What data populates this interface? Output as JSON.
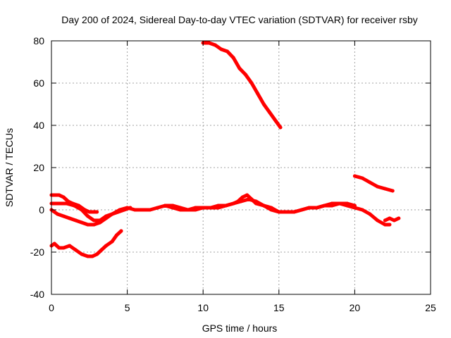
{
  "chart_data": {
    "type": "line",
    "title": "Day 200 of 2024, Sidereal Day-to-day VTEC variation (SDTVAR) for receiver rsby",
    "xlabel": "GPS time / hours",
    "ylabel": "SDTVAR / TECUs",
    "xlim": [
      0,
      25
    ],
    "ylim": [
      -40,
      80
    ],
    "xticks": [
      0,
      5,
      10,
      15,
      20,
      25
    ],
    "yticks": [
      -40,
      -20,
      0,
      20,
      40,
      60,
      80
    ],
    "grid": true,
    "legend": "none",
    "series_color": "#ff0000",
    "series": [
      {
        "name": "s1",
        "x": [
          0.0,
          0.2,
          0.5,
          0.8,
          1.2,
          1.6,
          2.0,
          2.4,
          2.7,
          3.0,
          3.3,
          3.6,
          4.0,
          4.3,
          4.6
        ],
        "y": [
          -17,
          -16,
          -18,
          -18,
          -17,
          -19,
          -21,
          -22,
          -22,
          -21,
          -19,
          -17,
          -15,
          -12,
          -10
        ]
      },
      {
        "name": "s2",
        "x": [
          0.0,
          0.2,
          0.5,
          0.8,
          1.1,
          1.4,
          1.8,
          2.2,
          2.5,
          2.8,
          3.0
        ],
        "y": [
          7,
          7,
          7,
          6,
          4,
          3,
          2,
          0,
          -1,
          -1,
          -1
        ]
      },
      {
        "name": "s3",
        "x": [
          0.0,
          0.3,
          0.6,
          1.0,
          1.5,
          2.0,
          2.4,
          2.8,
          3.2,
          3.6,
          4.0,
          4.4,
          4.8,
          5.2
        ],
        "y": [
          3,
          3,
          3,
          3,
          2,
          0,
          -3,
          -5,
          -5,
          -3,
          -2,
          -1,
          0,
          1
        ]
      },
      {
        "name": "s4",
        "x": [
          0.0,
          0.4,
          0.8,
          1.2,
          1.6,
          2.0,
          2.4,
          2.8,
          3.2,
          3.6,
          4.0,
          4.5,
          5.0,
          5.5,
          6.0,
          6.5,
          7.0,
          7.5,
          8.0,
          8.5,
          9.0,
          9.5,
          10.0,
          10.5,
          11.0,
          11.5,
          12.0,
          12.5,
          13.0,
          13.5,
          14.0,
          14.5,
          15.0,
          15.5,
          16.0,
          16.5,
          17.0,
          17.5,
          18.0,
          18.5,
          19.0,
          19.5,
          20.0
        ],
        "y": [
          0,
          -2,
          -3,
          -4,
          -5,
          -6,
          -7,
          -7,
          -6,
          -4,
          -2,
          0,
          1,
          0,
          0,
          0,
          1,
          2,
          1,
          0,
          0,
          1,
          1,
          1,
          1,
          2,
          3,
          4,
          5,
          4,
          2,
          1,
          -1,
          -1,
          -1,
          0,
          1,
          1,
          2,
          2,
          3,
          3,
          2
        ]
      },
      {
        "name": "s5",
        "x": [
          7.5,
          8.0,
          8.5,
          9.0,
          9.5,
          10.0,
          10.5,
          11.0,
          11.5,
          12.0,
          12.3,
          12.6,
          12.9,
          13.2,
          13.5,
          14.0
        ],
        "y": [
          2,
          2,
          1,
          0,
          0,
          1,
          1,
          2,
          2,
          3,
          4,
          6,
          7,
          5,
          3,
          2
        ]
      },
      {
        "name": "s6",
        "x": [
          14.0,
          14.5,
          15.0,
          15.5,
          16.0,
          16.5,
          17.0,
          17.5,
          18.0,
          18.5,
          19.0,
          19.5,
          20.0,
          20.5,
          21.0,
          21.5,
          22.0,
          22.3
        ],
        "y": [
          2,
          0,
          -1,
          -1,
          -1,
          0,
          1,
          1,
          2,
          3,
          3,
          2,
          1,
          0,
          -2,
          -5,
          -7,
          -7
        ]
      },
      {
        "name": "s7",
        "x": [
          10.0,
          10.4,
          10.8,
          11.2,
          11.6,
          12.0,
          12.4,
          12.8,
          13.2,
          13.6,
          14.0,
          14.4,
          14.8,
          15.1
        ],
        "y": [
          79,
          79,
          78,
          76,
          75,
          72,
          67,
          64,
          60,
          55,
          50,
          46,
          42,
          39
        ]
      },
      {
        "name": "s8",
        "x": [
          20.0,
          20.5,
          21.0,
          21.5,
          22.0,
          22.5
        ],
        "y": [
          16,
          15,
          13,
          11,
          10,
          9
        ]
      },
      {
        "name": "s9",
        "x": [
          22.0,
          22.3,
          22.6,
          22.9
        ],
        "y": [
          -5,
          -4,
          -5,
          -4
        ]
      }
    ]
  }
}
